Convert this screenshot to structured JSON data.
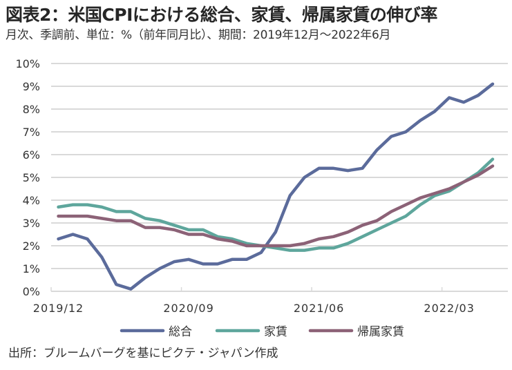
{
  "chart_data": {
    "type": "line",
    "title": "図表2：米国CPIにおける総合、家賃、帰属家賃の伸び率",
    "subtitle": "月次、季調前、単位：%（前年同月比）、期間：2019年12月～2022年6月",
    "source": "出所：ブルームバーグを基にピクテ・ジャパン作成",
    "xlabel": "",
    "ylabel": "",
    "ylim": [
      0,
      10
    ],
    "yticks": [
      "0%",
      "1%",
      "2%",
      "3%",
      "4%",
      "5%",
      "6%",
      "7%",
      "8%",
      "9%",
      "10%"
    ],
    "xtick_labels": [
      {
        "index": 0,
        "label": "2019/12"
      },
      {
        "index": 9,
        "label": "2020/09"
      },
      {
        "index": 18,
        "label": "2021/06"
      },
      {
        "index": 27,
        "label": "2022/03"
      }
    ],
    "x": [
      "2019/12",
      "2020/01",
      "2020/02",
      "2020/03",
      "2020/04",
      "2020/05",
      "2020/06",
      "2020/07",
      "2020/08",
      "2020/09",
      "2020/10",
      "2020/11",
      "2020/12",
      "2021/01",
      "2021/02",
      "2021/03",
      "2021/04",
      "2021/05",
      "2021/06",
      "2021/07",
      "2021/08",
      "2021/09",
      "2021/10",
      "2021/11",
      "2021/12",
      "2022/01",
      "2022/02",
      "2022/03",
      "2022/04",
      "2022/05",
      "2022/06"
    ],
    "grid": true,
    "legend": "bottom",
    "series": [
      {
        "name": "総合",
        "color": "#5b6b9b",
        "values": [
          2.3,
          2.5,
          2.3,
          1.5,
          0.3,
          0.1,
          0.6,
          1.0,
          1.3,
          1.4,
          1.2,
          1.2,
          1.4,
          1.4,
          1.7,
          2.6,
          4.2,
          5.0,
          5.4,
          5.4,
          5.3,
          5.4,
          6.2,
          6.8,
          7.0,
          7.5,
          7.9,
          8.5,
          8.3,
          8.6,
          9.1
        ]
      },
      {
        "name": "家賃",
        "color": "#5ea69c",
        "values": [
          3.7,
          3.8,
          3.8,
          3.7,
          3.5,
          3.5,
          3.2,
          3.1,
          2.9,
          2.7,
          2.7,
          2.4,
          2.3,
          2.1,
          2.0,
          1.9,
          1.8,
          1.8,
          1.9,
          1.9,
          2.1,
          2.4,
          2.7,
          3.0,
          3.3,
          3.8,
          4.2,
          4.4,
          4.8,
          5.2,
          5.8
        ]
      },
      {
        "name": "帰属家賃",
        "color": "#8c6277",
        "values": [
          3.3,
          3.3,
          3.3,
          3.2,
          3.1,
          3.1,
          2.8,
          2.8,
          2.7,
          2.5,
          2.5,
          2.3,
          2.2,
          2.0,
          2.0,
          2.0,
          2.0,
          2.1,
          2.3,
          2.4,
          2.6,
          2.9,
          3.1,
          3.5,
          3.8,
          4.1,
          4.3,
          4.5,
          4.8,
          5.1,
          5.5
        ]
      }
    ]
  }
}
